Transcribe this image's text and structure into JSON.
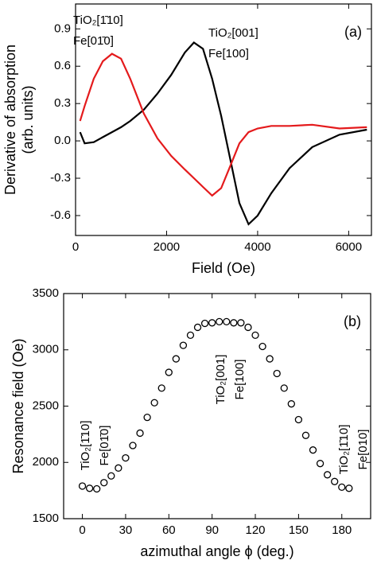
{
  "chart_data": [
    {
      "type": "line",
      "panel_label": "(a)",
      "xlabel": "Field (Oe)",
      "ylabel": [
        "Derivative of absorption",
        "(arb. units)"
      ],
      "xlim": [
        0,
        6500
      ],
      "xticks": [
        0,
        2000,
        4000,
        6000
      ],
      "ylim": [
        -0.76,
        1.1
      ],
      "yticks": [
        -0.6,
        -0.3,
        {
          "value": 0,
          "label": "0.0"
        },
        0.3,
        0.6,
        0.9
      ],
      "x": [
        100,
        200,
        400,
        600,
        800,
        1000,
        1200,
        1500,
        1800,
        2100,
        2400,
        2600,
        2800,
        3000,
        3200,
        3400,
        3600,
        3800,
        4000,
        4300,
        4700,
        5200,
        5800,
        6400
      ],
      "series": [
        {
          "color": "#000000",
          "values": [
            0.07,
            -0.02,
            -0.01,
            0.03,
            0.07,
            0.11,
            0.16,
            0.25,
            0.38,
            0.53,
            0.71,
            0.79,
            0.74,
            0.5,
            0.2,
            -0.15,
            -0.5,
            -0.67,
            -0.6,
            -0.42,
            -0.22,
            -0.05,
            0.05,
            0.09
          ]
        },
        {
          "color": "#e41a1c",
          "values": [
            0.16,
            0.28,
            0.5,
            0.64,
            0.7,
            0.66,
            0.5,
            0.22,
            0.02,
            -0.12,
            -0.23,
            -0.3,
            -0.37,
            -0.44,
            -0.38,
            -0.2,
            -0.02,
            0.07,
            0.1,
            0.12,
            0.12,
            0.13,
            0.1,
            0.11
          ]
        }
      ],
      "annotations": [
        {
          "text": "TiO₂[1̄10]",
          "color": "#e41a1c"
        },
        {
          "text": "Fe[01̄0]",
          "color": "#e41a1c"
        },
        {
          "text": "TiO₂[001]",
          "color": "#000000"
        },
        {
          "text": "Fe[100]",
          "color": "#000000"
        }
      ]
    },
    {
      "type": "scatter",
      "panel_label": "(b)",
      "xlabel": "azimuthal angle ϕ (deg.)",
      "ylabel": [
        "Resonance field (Oe)"
      ],
      "xlim": [
        -13,
        200
      ],
      "xticks": [
        0,
        30,
        60,
        90,
        120,
        150,
        180
      ],
      "ylim": [
        1500,
        3500
      ],
      "yticks": [
        1500,
        2000,
        2500,
        3000,
        3500
      ],
      "x": [
        0,
        5,
        10,
        15,
        20,
        25,
        30,
        35,
        40,
        45,
        50,
        55,
        60,
        65,
        70,
        75,
        80,
        85,
        90,
        95,
        100,
        105,
        110,
        115,
        120,
        125,
        130,
        135,
        140,
        145,
        150,
        155,
        160,
        165,
        170,
        175,
        180,
        185
      ],
      "series": [
        {
          "color": "#000000",
          "values": [
            1790,
            1770,
            1765,
            1820,
            1880,
            1950,
            2040,
            2150,
            2260,
            2400,
            2530,
            2660,
            2800,
            2920,
            3040,
            3130,
            3200,
            3235,
            3240,
            3250,
            3250,
            3240,
            3240,
            3200,
            3130,
            3030,
            2920,
            2790,
            2660,
            2520,
            2380,
            2240,
            2110,
            1990,
            1890,
            1830,
            1780,
            1770
          ]
        }
      ],
      "annotations": [
        {
          "text": "TiO₂[1̄10]",
          "color": "#000000"
        },
        {
          "text": "Fe[01̄0]",
          "color": "#000000"
        },
        {
          "text": "TiO₂[001]",
          "color": "#000000"
        },
        {
          "text": "Fe[100]",
          "color": "#000000"
        },
        {
          "text": "TiO₂[1̄10]",
          "color": "#000000"
        },
        {
          "text": "Fe[010]",
          "color": "#000000"
        }
      ]
    }
  ]
}
